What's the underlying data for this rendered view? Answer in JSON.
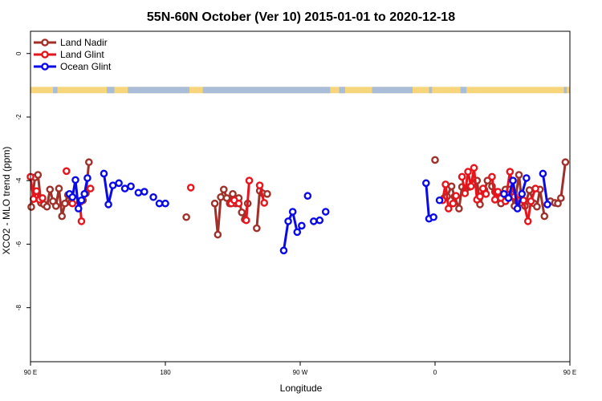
{
  "chart_data": {
    "type": "line",
    "title": "55N-60N October (Ver 10)   2015-01-01 to 2020-12-18",
    "xlabel": "Longitude",
    "ylabel": "XCO2 - MLO trend (ppm)",
    "xlim": [
      90,
      450
    ],
    "ylim": [
      -9.7,
      0.7
    ],
    "x_ticks": [
      {
        "value": 90,
        "label": "90 E"
      },
      {
        "value": 180,
        "label": "180"
      },
      {
        "value": 270,
        "label": "90 W"
      },
      {
        "value": 360,
        "label": "0"
      },
      {
        "value": 450,
        "label": "90 E"
      },
      {
        "value": 540,
        "label": "180"
      }
    ],
    "y_ticks": [
      {
        "value": 0,
        "label": "0"
      },
      {
        "value": -2,
        "label": "-2"
      },
      {
        "value": -4,
        "label": "-4"
      },
      {
        "value": -6,
        "label": "-6"
      },
      {
        "value": -8,
        "label": "-8"
      }
    ],
    "legend": {
      "placement": "top-left",
      "entries": [
        "Land Nadir",
        "Land Glint",
        "Ocean Glint"
      ]
    },
    "land_strip": {
      "y_top": -1.05,
      "y_bottom": -1.25,
      "ocean_color": "#a9bcd8",
      "land_color": "#f7d57a"
    },
    "series": [
      {
        "name": "Land Nadir",
        "color": "#a0302a",
        "points": [
          [
            90.5,
            -4.83
          ],
          [
            93,
            -3.9
          ],
          [
            95,
            -3.82
          ],
          [
            97,
            -4.7
          ],
          [
            99,
            -4.75
          ],
          [
            101,
            -4.82
          ],
          [
            103,
            -4.28
          ],
          [
            105,
            -4.65
          ],
          [
            107,
            -4.8
          ],
          [
            109,
            -4.25
          ],
          [
            111,
            -5.12
          ],
          [
            113,
            -4.72
          ],
          [
            115,
            -4.45
          ],
          [
            117,
            -4.68
          ],
          [
            125,
            -4.62
          ],
          [
            127,
            -4.4
          ],
          [
            129,
            -3.42
          ],
          [
            194,
            -5.15
          ],
          [
            213,
            -4.72
          ],
          [
            215,
            -5.7
          ],
          [
            217,
            -4.52
          ],
          [
            219,
            -4.28
          ],
          [
            221,
            -4.55
          ],
          [
            223,
            -4.72
          ],
          [
            225,
            -4.42
          ],
          [
            227,
            -4.72
          ],
          [
            229,
            -4.55
          ],
          [
            231,
            -5.0
          ],
          [
            233,
            -5.22
          ],
          [
            235,
            -4.72
          ],
          [
            241,
            -5.5
          ],
          [
            243,
            -4.32
          ],
          [
            245,
            -4.4
          ],
          [
            248,
            -4.42
          ],
          [
            360,
            -3.35
          ],
          [
            366,
            -4.55
          ],
          [
            368,
            -4.5
          ],
          [
            371,
            -4.18
          ],
          [
            373,
            -4.5
          ],
          [
            376,
            -4.88
          ],
          [
            378,
            -4.2
          ],
          [
            380,
            -4.3
          ],
          [
            383,
            -4.2
          ],
          [
            385,
            -4.12
          ],
          [
            388,
            -4.0
          ],
          [
            390,
            -4.75
          ],
          [
            393,
            -4.3
          ],
          [
            395,
            -4.0
          ],
          [
            398,
            -4.18
          ],
          [
            400,
            -4.35
          ],
          [
            402,
            -4.55
          ],
          [
            404,
            -4.72
          ],
          [
            407,
            -4.28
          ],
          [
            410,
            -4.28
          ],
          [
            413,
            -4.8
          ],
          [
            416,
            -3.82
          ],
          [
            418,
            -4.7
          ],
          [
            420,
            -4.8
          ],
          [
            423,
            -4.3
          ],
          [
            426,
            -4.72
          ],
          [
            428,
            -4.82
          ],
          [
            430,
            -4.28
          ],
          [
            433,
            -5.12
          ],
          [
            437,
            -4.65
          ],
          [
            440,
            -4.7
          ],
          [
            442,
            -4.72
          ],
          [
            444,
            -4.55
          ],
          [
            447,
            -3.42
          ]
        ]
      },
      {
        "name": "Land Glint",
        "color": "#e8141c",
        "points": [
          [
            90,
            -3.88
          ],
          [
            92,
            -4.58
          ],
          [
            94,
            -4.33
          ],
          [
            96,
            -4.6
          ],
          [
            98,
            -4.55
          ],
          [
            114,
            -3.7
          ],
          [
            118,
            -4.72
          ],
          [
            123,
            -4.68
          ],
          [
            124,
            -5.28
          ],
          [
            130,
            -4.25
          ],
          [
            197,
            -4.22
          ],
          [
            224,
            -4.72
          ],
          [
            226,
            -4.62
          ],
          [
            229,
            -4.72
          ],
          [
            234,
            -5.25
          ],
          [
            236,
            -4.0
          ],
          [
            243,
            -4.15
          ],
          [
            246,
            -4.7
          ],
          [
            365,
            -4.62
          ],
          [
            367,
            -4.12
          ],
          [
            369,
            -4.88
          ],
          [
            372,
            -4.72
          ],
          [
            374,
            -4.48
          ],
          [
            378,
            -3.88
          ],
          [
            380,
            -4.4
          ],
          [
            382,
            -3.72
          ],
          [
            384,
            -4.18
          ],
          [
            386,
            -3.6
          ],
          [
            388,
            -4.6
          ],
          [
            390,
            -4.5
          ],
          [
            392,
            -4.25
          ],
          [
            394,
            -4.42
          ],
          [
            398,
            -3.88
          ],
          [
            400,
            -4.6
          ],
          [
            402,
            -4.35
          ],
          [
            404,
            -4.55
          ],
          [
            407,
            -4.65
          ],
          [
            410,
            -3.72
          ],
          [
            413,
            -4.5
          ],
          [
            417,
            -4.6
          ],
          [
            419,
            -4.62
          ],
          [
            422,
            -5.28
          ],
          [
            424,
            -4.65
          ],
          [
            427,
            -4.25
          ]
        ]
      },
      {
        "name": "Ocean Glint",
        "color": "#0a0ae8",
        "points": [
          [
            116,
            -4.42
          ],
          [
            118,
            -4.52
          ],
          [
            120,
            -3.98
          ],
          [
            122,
            -4.88
          ],
          [
            124,
            -4.62
          ],
          [
            126,
            -4.42
          ],
          [
            128,
            -3.92
          ],
          [
            139,
            -3.78
          ],
          [
            142,
            -4.75
          ],
          [
            145,
            -4.15
          ],
          [
            149,
            -4.08
          ],
          [
            153,
            -4.25
          ],
          [
            157,
            -4.18
          ],
          [
            162,
            -4.38
          ],
          [
            166,
            -4.35
          ],
          [
            172,
            -4.52
          ],
          [
            176,
            -4.72
          ],
          [
            180,
            -4.72
          ],
          [
            259,
            -6.2
          ],
          [
            262,
            -5.28
          ],
          [
            265,
            -4.98
          ],
          [
            268,
            -5.62
          ],
          [
            271,
            -5.42
          ],
          [
            275,
            -4.48
          ],
          [
            279,
            -5.28
          ],
          [
            283,
            -5.25
          ],
          [
            287,
            -4.98
          ],
          [
            354,
            -4.08
          ],
          [
            356,
            -5.2
          ],
          [
            359,
            -5.15
          ],
          [
            363,
            -4.62
          ],
          [
            406,
            -4.42
          ],
          [
            409,
            -4.55
          ],
          [
            412,
            -4.0
          ],
          [
            415,
            -4.88
          ],
          [
            418,
            -4.42
          ],
          [
            421,
            -3.92
          ],
          [
            432,
            -3.78
          ],
          [
            435,
            -4.75
          ]
        ]
      }
    ]
  }
}
